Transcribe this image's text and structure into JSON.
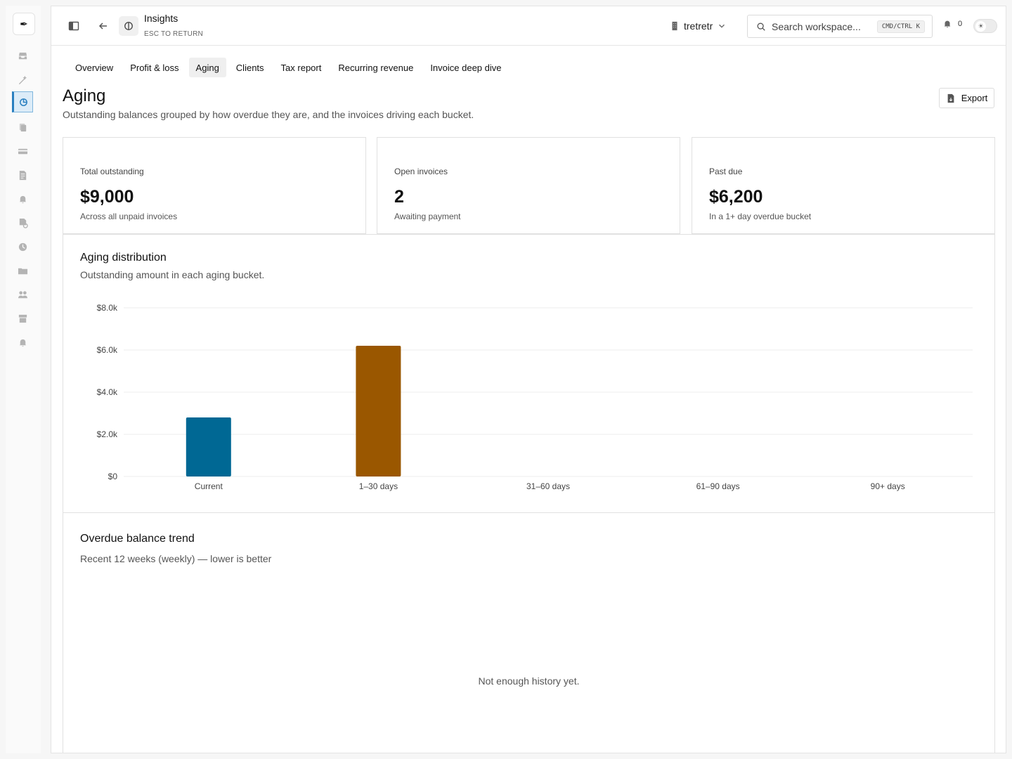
{
  "app": {
    "title": "Insights",
    "subtitle": "ESC TO RETURN",
    "workspace": "tretretr",
    "search_placeholder": "Search workspace...",
    "search_shortcut": "CMD/CTRL K",
    "notification_count": "0"
  },
  "rail_icons": [
    "logo-pen-icon",
    "inbox-icon",
    "magic-wand-icon",
    "insights-icon",
    "documents-icon",
    "credit-card-icon",
    "invoice-icon",
    "bell-icon",
    "recurring-invoice-icon",
    "clock-icon",
    "folder-icon",
    "users-icon",
    "archive-icon",
    "notification-icon"
  ],
  "tabs": [
    "Overview",
    "Profit & loss",
    "Aging",
    "Clients",
    "Tax report",
    "Recurring revenue",
    "Invoice deep dive"
  ],
  "active_tab": "Aging",
  "page": {
    "title": "Aging",
    "description": "Outstanding balances grouped by how overdue they are, and the invoices driving each bucket.",
    "export_label": "Export"
  },
  "stats": [
    {
      "label": "Total outstanding",
      "value": "$9,000",
      "sub": "Across all unpaid invoices"
    },
    {
      "label": "Open invoices",
      "value": "2",
      "sub": "Awaiting payment"
    },
    {
      "label": "Past due",
      "value": "$6,200",
      "sub": "In a 1+ day overdue bucket"
    }
  ],
  "distribution": {
    "title": "Aging distribution",
    "subtitle": "Outstanding amount in each aging bucket."
  },
  "trend": {
    "title": "Overdue balance trend",
    "subtitle": "Recent 12 weeks (weekly) — lower is better",
    "empty_message": "Not enough history yet."
  },
  "chart_data": {
    "type": "bar",
    "categories": [
      "Current",
      "1–30 days",
      "31–60 days",
      "61–90 days",
      "90+ days"
    ],
    "values": [
      2800,
      6200,
      0,
      0,
      0
    ],
    "colors": [
      "#006894",
      "#9a5700",
      "#9a5700",
      "#9a5700",
      "#9a5700"
    ],
    "ylim": [
      0,
      8000
    ],
    "yticks": [
      0,
      2000,
      4000,
      6000,
      8000
    ],
    "ytick_labels": [
      "$0",
      "$2.0k",
      "$4.0k",
      "$6.0k",
      "$8.0k"
    ],
    "grid": true,
    "title": "",
    "xlabel": "",
    "ylabel": ""
  }
}
